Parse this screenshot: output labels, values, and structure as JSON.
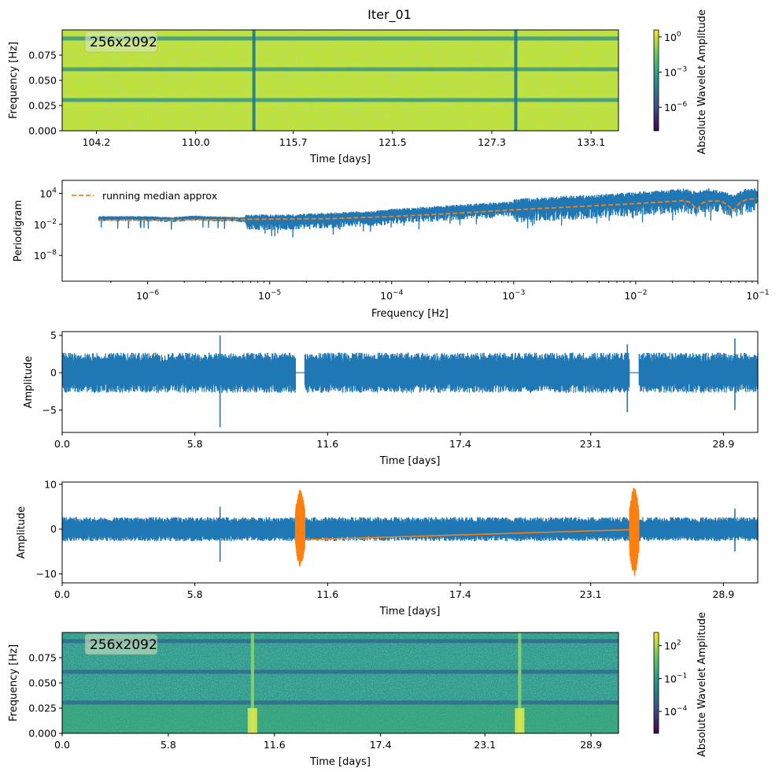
{
  "title": "Iter_01",
  "colors": {
    "blue": "#1f77b4",
    "orange": "#ff7f0e",
    "viridis": [
      "#440154",
      "#3b528b",
      "#21918c",
      "#5ec962",
      "#fde725"
    ]
  },
  "chart_data": [
    {
      "id": "spectrogram_top",
      "type": "heatmap",
      "label": "256x2092",
      "xlabel": "Time [days]",
      "ylabel": "Frequency [Hz]",
      "xlim": [
        102.2,
        134.7
      ],
      "ylim": [
        0.0,
        0.1
      ],
      "xticks": [
        104.2,
        110.0,
        115.7,
        121.5,
        127.3,
        133.1
      ],
      "xtick_labels": [
        "104.2",
        "110.0",
        "115.7",
        "121.5",
        "127.3",
        "133.1"
      ],
      "yticks": [
        0.0,
        0.025,
        0.05,
        0.075
      ],
      "ytick_labels": [
        "0.000",
        "0.025",
        "0.050",
        "0.075"
      ],
      "dark_bands_hz": [
        0.0305,
        0.061,
        0.0915
      ],
      "vertical_lines_days": [
        113.4,
        128.7
      ],
      "colorbar": {
        "label": "Absolute Wavelet Amplitude",
        "scale": "log",
        "range_exp": [
          -8,
          0.6
        ],
        "ticks_exp": [
          0,
          -3,
          -6
        ],
        "tick_labels": [
          "10",
          "10",
          "10"
        ],
        "tick_sup": [
          "0",
          "−3",
          "−6"
        ]
      }
    },
    {
      "id": "periodogram",
      "type": "line",
      "xscale": "log",
      "yscale": "log",
      "xlabel": "Frequency [Hz]",
      "ylabel": "Periodigram",
      "xlim_exp": [
        -6.7,
        -1
      ],
      "ylim_exp": [
        -13,
        6.5
      ],
      "xticks_exp": [
        -6,
        -5,
        -4,
        -3,
        -2,
        -1
      ],
      "xtick_labels": [
        "10",
        "10",
        "10",
        "10",
        "10",
        "10"
      ],
      "xtick_sup": [
        "−6",
        "−5",
        "−4",
        "−3",
        "−2",
        "−1"
      ],
      "yticks_exp": [
        4,
        -2,
        -8
      ],
      "ytick_labels": [
        "10",
        "10",
        "10"
      ],
      "ytick_sup": [
        "4",
        "−2",
        "−8"
      ],
      "legend": [
        "running median approx"
      ],
      "series": [
        {
          "name": "periodogram",
          "style": "solid",
          "log_x": [
            -6.4,
            -6.0,
            -5.8,
            -5.6,
            -5.4,
            -5.2,
            -5.0,
            -4.8,
            -4.6,
            -4.4,
            -4.2,
            -4.0,
            -3.8,
            -3.6,
            -3.4,
            -3.2,
            -3.0,
            -2.8,
            -2.6,
            -2.4,
            -2.2,
            -2.0,
            -1.8,
            -1.6,
            -1.5,
            -1.4,
            -1.3,
            -1.2,
            -1.1,
            -1.0
          ],
          "log_y": [
            -0.7,
            -0.7,
            -0.9,
            -0.6,
            -0.8,
            -0.9,
            -1.0,
            -0.9,
            -0.7,
            -0.5,
            -0.3,
            0.1,
            0.4,
            0.7,
            1.0,
            1.3,
            1.6,
            1.8,
            2.1,
            2.3,
            2.6,
            2.9,
            3.2,
            3.6,
            3.0,
            3.6,
            3.2,
            2.4,
            3.5,
            3.7
          ]
        },
        {
          "name": "running median approx",
          "style": "dashed",
          "log_x": [
            -6.4,
            -6.0,
            -5.5,
            -5.0,
            -4.5,
            -4.0,
            -3.5,
            -3.0,
            -2.5,
            -2.0,
            -1.8,
            -1.6,
            -1.55,
            -1.5,
            -1.45,
            -1.4,
            -1.3,
            -1.25,
            -1.2,
            -1.15,
            -1.1,
            -1.05,
            -1.0
          ],
          "log_y": [
            -1.2,
            -1.2,
            -1.1,
            -1.0,
            -0.9,
            -0.5,
            0.1,
            0.8,
            1.4,
            2.0,
            2.3,
            2.6,
            2.2,
            0.9,
            2.2,
            2.5,
            2.5,
            1.8,
            0.6,
            2.1,
            2.7,
            2.9,
            3.0
          ]
        }
      ]
    },
    {
      "id": "timeseries_gapped",
      "type": "line",
      "xlabel": "Time [days]",
      "ylabel": "Amplitude",
      "xlim": [
        0.0,
        30.4
      ],
      "ylim": [
        -8.0,
        5.5
      ],
      "xticks": [
        0.0,
        5.8,
        11.6,
        17.4,
        23.1,
        28.9
      ],
      "xtick_labels": [
        "0.0",
        "5.8",
        "11.6",
        "17.4",
        "23.1",
        "28.9"
      ],
      "yticks": [
        5,
        0,
        -5
      ],
      "ytick_labels": [
        "5",
        "0",
        "−5"
      ],
      "noise_band": [
        -2.7,
        2.7
      ],
      "gaps_days": [
        [
          10.2,
          10.6
        ],
        [
          24.8,
          25.2
        ]
      ],
      "spikes": [
        {
          "x": 6.9,
          "top": 5.0,
          "bottom": -7.3
        },
        {
          "x": 24.7,
          "top": 3.8,
          "bottom": -5.3
        },
        {
          "x": 29.4,
          "top": 4.6,
          "bottom": -5.0
        }
      ]
    },
    {
      "id": "timeseries_filled",
      "type": "line",
      "xlabel": "Time [days]",
      "ylabel": "Amplitude",
      "xlim": [
        0.0,
        30.4
      ],
      "ylim": [
        -12.0,
        10.5
      ],
      "xticks": [
        0.0,
        5.8,
        11.6,
        17.4,
        23.1,
        28.9
      ],
      "xtick_labels": [
        "0.0",
        "5.8",
        "11.6",
        "17.4",
        "23.1",
        "28.9"
      ],
      "yticks": [
        10,
        0,
        -10
      ],
      "ytick_labels": [
        "10",
        "0",
        "−10"
      ],
      "noise_band": [
        -2.7,
        2.7
      ],
      "filled_segments": [
        {
          "x0": 10.2,
          "x1": 10.6,
          "low": -8.5,
          "high": 9.0
        },
        {
          "x0": 24.8,
          "x1": 25.2,
          "low": -10.5,
          "high": 9.5
        }
      ],
      "trend_line": {
        "x": [
          10.4,
          25.0
        ],
        "y": [
          -2.4,
          -0.1
        ]
      },
      "spikes": [
        {
          "x": 6.9,
          "top": 5.0,
          "bottom": -7.3
        },
        {
          "x": 29.4,
          "top": 4.6,
          "bottom": -5.0
        }
      ]
    },
    {
      "id": "spectrogram_bottom",
      "type": "heatmap",
      "label": "256x2092",
      "xlabel": "Time [days]",
      "ylabel": "Frequency [Hz]",
      "xlim": [
        0.0,
        30.4
      ],
      "ylim": [
        0.0,
        0.1
      ],
      "xticks": [
        0.0,
        5.8,
        11.6,
        17.4,
        23.1,
        28.9
      ],
      "xtick_labels": [
        "0.0",
        "5.8",
        "11.6",
        "17.4",
        "23.1",
        "28.9"
      ],
      "yticks": [
        0.0,
        0.025,
        0.05,
        0.075
      ],
      "ytick_labels": [
        "0.000",
        "0.025",
        "0.050",
        "0.075"
      ],
      "dark_bands_hz": [
        0.0305,
        0.061,
        0.0915
      ],
      "vertical_lines_days": [
        10.4,
        25.0
      ],
      "colorbar": {
        "label": "Absolute Wavelet Amplitude",
        "scale": "log",
        "range_exp": [
          -6,
          3.2
        ],
        "ticks_exp": [
          2,
          -1,
          -4
        ],
        "tick_labels": [
          "10",
          "10",
          "10"
        ],
        "tick_sup": [
          "2",
          "−1",
          "−4"
        ]
      }
    }
  ]
}
